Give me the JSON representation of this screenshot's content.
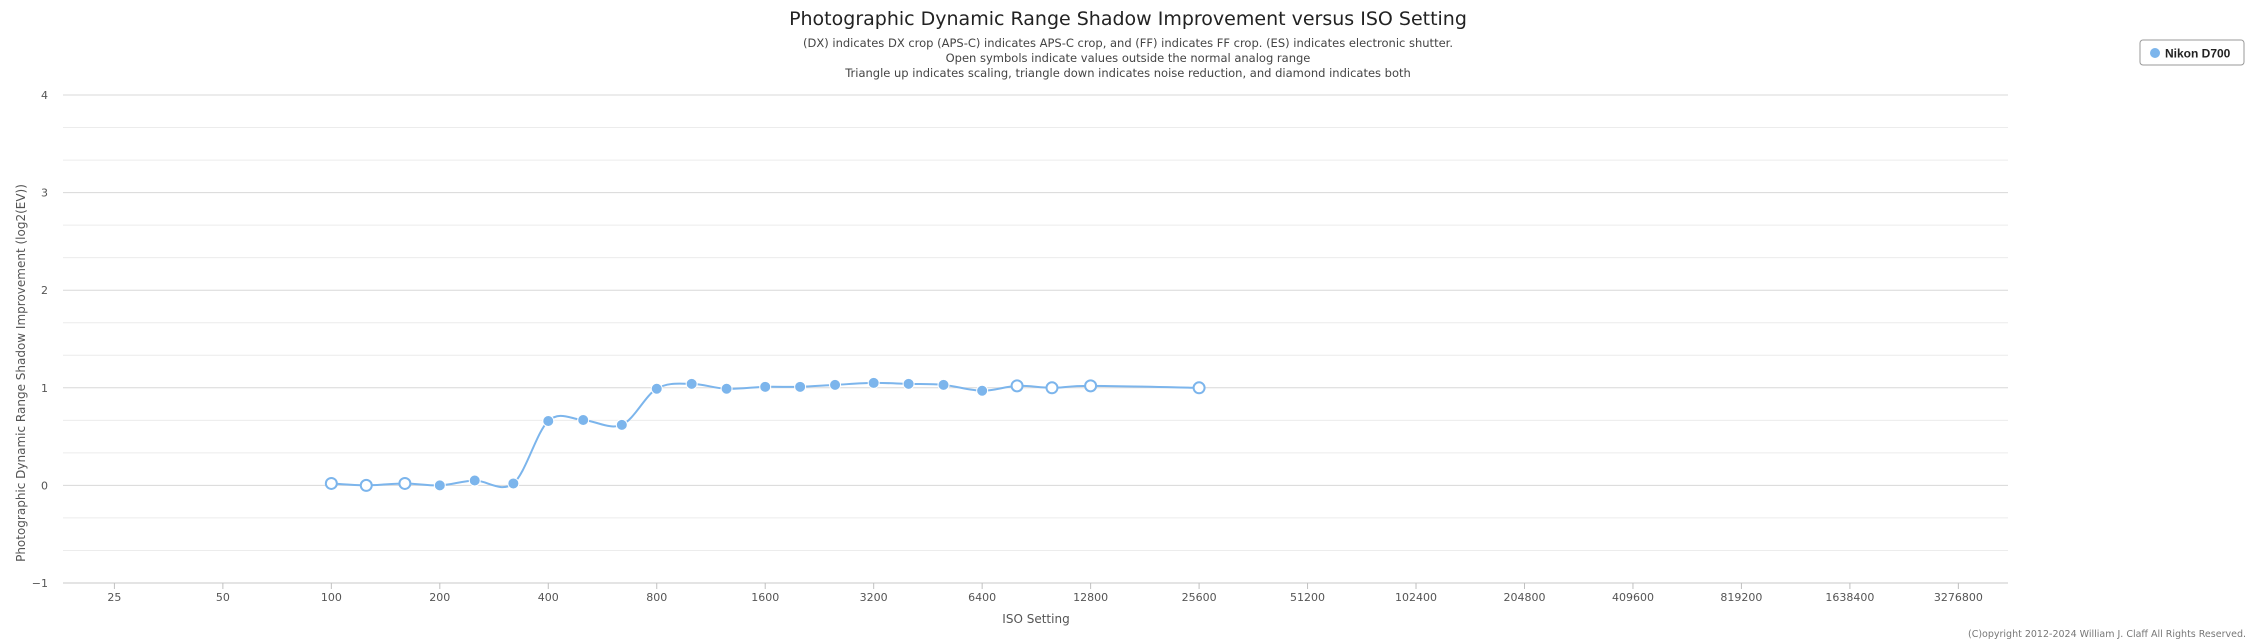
{
  "chart_data": {
    "type": "line",
    "title": "Photographic Dynamic Range Shadow Improvement versus ISO Setting",
    "subtitle": [
      "(DX) indicates DX crop (APS-C) indicates APS-C crop, and (FF) indicates FF crop. (ES) indicates electronic shutter.",
      "Open symbols indicate values outside the normal analog range",
      "Triangle up indicates scaling, triangle down indicates noise reduction, and diamond indicates both"
    ],
    "xlabel": "ISO Setting",
    "ylabel": "Photographic Dynamic Range Shadow Improvement (log2(EV))",
    "x_scale": "log2",
    "xlim": [
      18,
      4500000
    ],
    "ylim": [
      -1,
      4
    ],
    "y_major_ticks": [
      -1,
      0,
      1,
      2,
      3,
      4
    ],
    "y_minor_step": 0.333,
    "x_ticks": [
      {
        "value": 25,
        "label": "25"
      },
      {
        "value": 50,
        "label": "50"
      },
      {
        "value": 100,
        "label": "100"
      },
      {
        "value": 200,
        "label": "200"
      },
      {
        "value": 400,
        "label": "400"
      },
      {
        "value": 800,
        "label": "800"
      },
      {
        "value": 1600,
        "label": "1600"
      },
      {
        "value": 3200,
        "label": "3200"
      },
      {
        "value": 6400,
        "label": "6400"
      },
      {
        "value": 12800,
        "label": "12800"
      },
      {
        "value": 25600,
        "label": "25600"
      },
      {
        "value": 51200,
        "label": "51200"
      },
      {
        "value": 102400,
        "label": "102400"
      },
      {
        "value": 204800,
        "label": "204800"
      },
      {
        "value": 409600,
        "label": "409600"
      },
      {
        "value": 819200,
        "label": "819200"
      },
      {
        "value": 1638400,
        "label": "1638400"
      },
      {
        "value": 3276800,
        "label": "3276800"
      }
    ],
    "grid": true,
    "legend_position": "top-right",
    "series": [
      {
        "name": "Nikon D700",
        "color": "#7cb5ec",
        "points": [
          {
            "x": 100,
            "y": 0.02,
            "open": true
          },
          {
            "x": 125,
            "y": 0.0,
            "open": true
          },
          {
            "x": 160,
            "y": 0.02,
            "open": true
          },
          {
            "x": 200,
            "y": 0.0,
            "open": false
          },
          {
            "x": 250,
            "y": 0.05,
            "open": false
          },
          {
            "x": 320,
            "y": 0.02,
            "open": false
          },
          {
            "x": 400,
            "y": 0.66,
            "open": false
          },
          {
            "x": 500,
            "y": 0.67,
            "open": false
          },
          {
            "x": 640,
            "y": 0.62,
            "open": false
          },
          {
            "x": 800,
            "y": 0.99,
            "open": false
          },
          {
            "x": 1000,
            "y": 1.04,
            "open": false
          },
          {
            "x": 1250,
            "y": 0.99,
            "open": false
          },
          {
            "x": 1600,
            "y": 1.01,
            "open": false
          },
          {
            "x": 2000,
            "y": 1.01,
            "open": false
          },
          {
            "x": 2500,
            "y": 1.03,
            "open": false
          },
          {
            "x": 3200,
            "y": 1.05,
            "open": false
          },
          {
            "x": 4000,
            "y": 1.04,
            "open": false
          },
          {
            "x": 5000,
            "y": 1.03,
            "open": false
          },
          {
            "x": 6400,
            "y": 0.97,
            "open": false
          },
          {
            "x": 8000,
            "y": 1.02,
            "open": true
          },
          {
            "x": 10000,
            "y": 1.0,
            "open": true
          },
          {
            "x": 12800,
            "y": 1.02,
            "open": true
          },
          {
            "x": 25600,
            "y": 1.0,
            "open": true
          }
        ]
      }
    ]
  },
  "credit": "(C)opyright 2012-2024 William J. Claff All Rights Reserved."
}
